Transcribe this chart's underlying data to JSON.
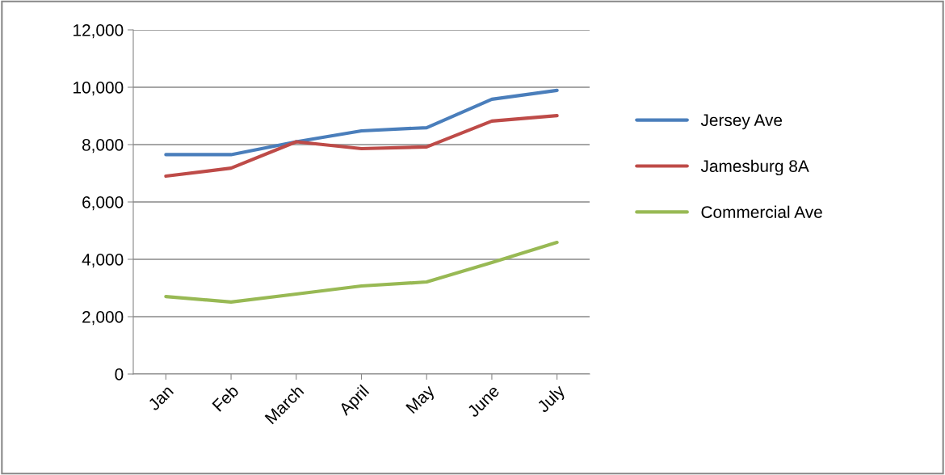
{
  "chart_data": {
    "type": "line",
    "categories": [
      "Jan",
      "Feb",
      "March",
      "April",
      "May",
      "June",
      "July"
    ],
    "series": [
      {
        "name": "Jersey Ave",
        "color": "#4a7ebb",
        "values": [
          7650,
          7650,
          8100,
          8480,
          8590,
          9580,
          9890
        ]
      },
      {
        "name": "Jamesburg 8A",
        "color": "#be4b48",
        "values": [
          6900,
          7180,
          8100,
          7860,
          7920,
          8820,
          9010
        ]
      },
      {
        "name": "Commercial Ave",
        "color": "#98b954",
        "values": [
          2700,
          2510,
          2790,
          3070,
          3210,
          3890,
          4590
        ]
      }
    ],
    "ylim": [
      0,
      12000
    ],
    "yticks": [
      0,
      {
        "value": 2000,
        "label": "2,000"
      },
      {
        "value": 4000,
        "label": "4,000"
      },
      {
        "value": 6000,
        "label": "6,000"
      },
      {
        "value": 8000,
        "label": "8,000"
      },
      {
        "value": 10000,
        "label": "10,000"
      },
      {
        "value": 12000,
        "label": "12,000"
      }
    ],
    "grid": "y",
    "legend": "right",
    "marker": "none",
    "line_style": "solid"
  }
}
